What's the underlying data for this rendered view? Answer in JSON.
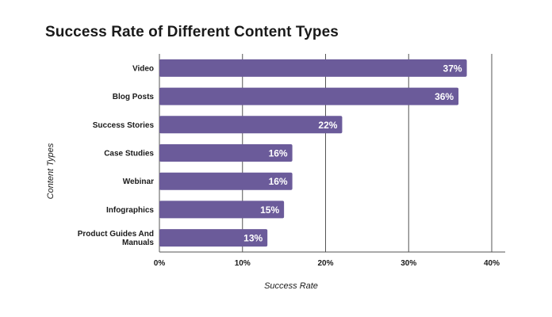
{
  "chart_data": {
    "type": "bar",
    "orientation": "horizontal",
    "title": "Success Rate of Different Content Types",
    "xlabel": "Success Rate",
    "ylabel": "Content Types",
    "categories": [
      "Video",
      "Blog Posts",
      "Success Stories",
      "Case Studies",
      "Webinar",
      "Infographics",
      "Product Guides And Manuals"
    ],
    "values": [
      37,
      36,
      22,
      16,
      16,
      15,
      13
    ],
    "value_labels": [
      "37%",
      "36%",
      "22%",
      "16%",
      "16%",
      "15%",
      "13%"
    ],
    "xlim": [
      0,
      40
    ],
    "xticks": [
      0,
      10,
      20,
      30,
      40
    ],
    "xtick_labels": [
      "0%",
      "10%",
      "20%",
      "30%",
      "40%"
    ],
    "grid": "vertical",
    "bar_color": "#6b5b9a",
    "grid_color": "#555555"
  }
}
